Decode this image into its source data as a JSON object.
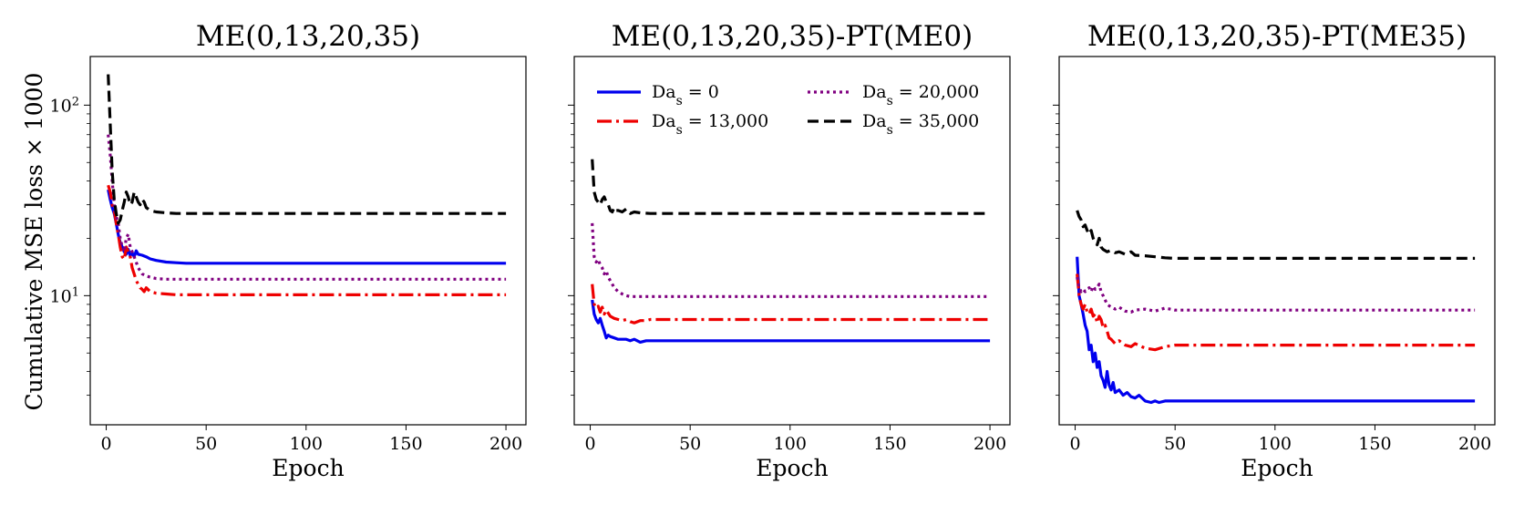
{
  "figure": {
    "ylabel": "Cumulative MSE loss × 1000",
    "colors": {
      "s0": "#0000ee",
      "s13": "#ee0000",
      "s20": "#800080",
      "s35": "#000000"
    }
  },
  "chart_data": [
    {
      "type": "line",
      "title": "ME(0,13,20,35)",
      "xlabel": "Epoch",
      "ylabel": "Cumulative MSE loss × 1000",
      "yscale": "log",
      "xlim": [
        -8,
        210
      ],
      "ylim": [
        2.1,
        180
      ],
      "xticks": [
        0,
        50,
        100,
        150,
        200
      ],
      "yticks": [
        10,
        100
      ],
      "ytick_labels": [
        "10^1",
        "10^2"
      ],
      "grid": false,
      "series": [
        {
          "key": "s0",
          "name": "Da_s = 0",
          "x": [
            1,
            2,
            3,
            4,
            5,
            6,
            7,
            8,
            9,
            10,
            11,
            12,
            13,
            14,
            15,
            16,
            18,
            20,
            22,
            25,
            30,
            35,
            40,
            50,
            70,
            100,
            150,
            200
          ],
          "y": [
            36,
            32,
            29,
            27,
            24,
            21,
            19,
            18,
            17,
            16.5,
            17.5,
            16.2,
            16.8,
            16,
            17.2,
            16.5,
            16.3,
            16,
            15.6,
            15.3,
            15,
            14.9,
            14.8,
            14.8,
            14.8,
            14.8,
            14.8,
            14.8
          ]
        },
        {
          "key": "s13",
          "name": "Da_s = 13,000",
          "x": [
            1,
            2,
            3,
            4,
            5,
            6,
            7,
            8,
            9,
            10,
            11,
            12,
            13,
            14,
            15,
            16,
            17,
            18,
            19,
            20,
            22,
            25,
            30,
            35,
            40,
            50,
            100,
            150,
            200
          ],
          "y": [
            38,
            35,
            30,
            28,
            24,
            21,
            18,
            16,
            15.5,
            18,
            17,
            16,
            14,
            13,
            12,
            11.5,
            11,
            10.8,
            10.5,
            11,
            10.5,
            10.3,
            10.2,
            10.1,
            10.1,
            10.1,
            10.1,
            10.1,
            10.1
          ]
        },
        {
          "key": "s20",
          "name": "Da_s = 20,000",
          "x": [
            1,
            2,
            3,
            4,
            5,
            6,
            7,
            8,
            9,
            10,
            11,
            12,
            13,
            14,
            15,
            16,
            17,
            18,
            20,
            22,
            25,
            30,
            35,
            40,
            50,
            100,
            150,
            200
          ],
          "y": [
            70,
            55,
            40,
            30,
            26,
            24,
            20,
            18,
            17,
            20,
            21,
            18,
            17,
            16,
            15,
            14,
            13.5,
            13,
            12.7,
            12.5,
            12.3,
            12.2,
            12.2,
            12.2,
            12.2,
            12.2,
            12.2,
            12.2
          ]
        },
        {
          "key": "s35",
          "name": "Da_s = 35,000",
          "x": [
            1,
            2,
            3,
            4,
            5,
            6,
            7,
            8,
            9,
            10,
            11,
            12,
            13,
            14,
            15,
            16,
            17,
            18,
            19,
            20,
            22,
            25,
            30,
            35,
            40,
            50,
            100,
            150,
            200
          ],
          "y": [
            145,
            80,
            45,
            32,
            27,
            24,
            25,
            28,
            31,
            35,
            33,
            30,
            31,
            35,
            33,
            31,
            30,
            32,
            31,
            29,
            28,
            27.5,
            27.2,
            27,
            27,
            27,
            27,
            27,
            27
          ]
        }
      ]
    },
    {
      "type": "line",
      "title": "ME(0,13,20,35)-PT(ME0)",
      "xlabel": "Epoch",
      "yscale": "log",
      "xlim": [
        -8,
        210
      ],
      "ylim": [
        2.1,
        180
      ],
      "xticks": [
        0,
        50,
        100,
        150,
        200
      ],
      "grid": false,
      "legend": {
        "placement": "top",
        "columns": 2
      },
      "series": [
        {
          "key": "s0",
          "name": "Da_s = 0",
          "x": [
            1,
            2,
            3,
            4,
            5,
            6,
            7,
            8,
            9,
            10,
            12,
            14,
            16,
            18,
            20,
            22,
            25,
            28,
            30,
            35,
            40,
            50,
            100,
            150,
            200
          ],
          "y": [
            9.5,
            8,
            7.5,
            7.2,
            7.6,
            7,
            6.5,
            6,
            6.2,
            6.1,
            6,
            5.9,
            5.9,
            5.9,
            5.8,
            5.9,
            5.7,
            5.8,
            5.8,
            5.8,
            5.8,
            5.8,
            5.8,
            5.8,
            5.8
          ]
        },
        {
          "key": "s13",
          "name": "Da_s = 13,000",
          "x": [
            1,
            2,
            3,
            4,
            5,
            6,
            7,
            8,
            10,
            12,
            14,
            16,
            18,
            20,
            22,
            25,
            28,
            30,
            35,
            40,
            50,
            100,
            150,
            200
          ],
          "y": [
            11.5,
            9,
            8.6,
            8.8,
            8.2,
            8.7,
            8,
            8.4,
            7.8,
            7.6,
            7.5,
            7.4,
            7.5,
            7.3,
            7.2,
            7.4,
            7.4,
            7.5,
            7.5,
            7.5,
            7.5,
            7.5,
            7.5,
            7.5
          ]
        },
        {
          "key": "s20",
          "name": "Da_s = 20,000",
          "x": [
            1,
            2,
            3,
            4,
            5,
            6,
            7,
            8,
            9,
            10,
            11,
            12,
            14,
            16,
            18,
            20,
            25,
            30,
            40,
            50,
            100,
            150,
            200
          ],
          "y": [
            24,
            16,
            15,
            15.5,
            14.5,
            14,
            13,
            13.5,
            12.5,
            12,
            11.5,
            11,
            10.5,
            10.2,
            10,
            9.9,
            9.9,
            9.9,
            9.9,
            9.9,
            9.9,
            9.9,
            9.9
          ]
        },
        {
          "key": "s35",
          "name": "Da_s = 35,000",
          "x": [
            1,
            2,
            3,
            4,
            5,
            6,
            7,
            8,
            9,
            10,
            11,
            12,
            13,
            14,
            16,
            18,
            20,
            22,
            25,
            30,
            40,
            50,
            100,
            150,
            200
          ],
          "y": [
            52,
            35,
            32,
            31,
            30,
            32,
            33,
            31,
            30,
            28,
            27.5,
            29,
            28,
            28,
            27.5,
            28.5,
            27,
            27.5,
            27.2,
            27,
            27,
            27,
            27,
            27,
            27
          ]
        }
      ]
    },
    {
      "type": "line",
      "title": "ME(0,13,20,35)-PT(ME35)",
      "xlabel": "Epoch",
      "yscale": "log",
      "xlim": [
        -8,
        210
      ],
      "ylim": [
        2.1,
        180
      ],
      "xticks": [
        0,
        50,
        100,
        150,
        200
      ],
      "grid": false,
      "series": [
        {
          "key": "s0",
          "name": "Da_s = 0",
          "x": [
            1,
            2,
            3,
            4,
            5,
            6,
            7,
            8,
            9,
            10,
            11,
            12,
            13,
            14,
            15,
            16,
            17,
            18,
            19,
            20,
            22,
            24,
            26,
            28,
            30,
            32,
            35,
            38,
            40,
            42,
            45,
            50,
            100,
            150,
            200
          ],
          "y": [
            16,
            10,
            9,
            8,
            7,
            6.5,
            5.2,
            5.5,
            4.5,
            5,
            4.2,
            4.5,
            3.8,
            3.6,
            3.3,
            4,
            3.4,
            3.2,
            3.5,
            3.1,
            3.2,
            3,
            3.1,
            2.95,
            2.9,
            3,
            2.8,
            2.75,
            2.8,
            2.75,
            2.8,
            2.8,
            2.8,
            2.8,
            2.8
          ]
        },
        {
          "key": "s13",
          "name": "Da_s = 13,000",
          "x": [
            1,
            2,
            3,
            4,
            5,
            6,
            7,
            8,
            9,
            10,
            11,
            12,
            13,
            14,
            15,
            16,
            17,
            18,
            20,
            22,
            25,
            28,
            30,
            35,
            40,
            45,
            50,
            100,
            150,
            200
          ],
          "y": [
            13,
            10,
            9,
            8.5,
            9,
            8.2,
            8,
            8.5,
            7.8,
            8,
            7.2,
            7.8,
            7.5,
            6.8,
            7,
            6.5,
            6,
            5.9,
            5.6,
            5.8,
            5.5,
            5.4,
            5.6,
            5.3,
            5.2,
            5.4,
            5.5,
            5.5,
            5.5,
            5.5
          ]
        },
        {
          "key": "s20",
          "name": "Da_s = 20,000",
          "x": [
            1,
            2,
            3,
            4,
            5,
            6,
            7,
            8,
            9,
            10,
            11,
            12,
            13,
            14,
            15,
            16,
            18,
            20,
            22,
            25,
            28,
            30,
            35,
            40,
            45,
            50,
            100,
            150,
            200
          ],
          "y": [
            12.5,
            11,
            10.5,
            10.8,
            10.5,
            10.8,
            11,
            10.5,
            11.2,
            10.8,
            11,
            11.5,
            10.5,
            10,
            9.5,
            9,
            8.7,
            8.5,
            8.7,
            8.3,
            8.2,
            8.4,
            8.5,
            8.3,
            8.6,
            8.4,
            8.4,
            8.4,
            8.4
          ]
        },
        {
          "key": "s35",
          "name": "Da_s = 35,000",
          "x": [
            1,
            2,
            3,
            4,
            5,
            6,
            7,
            8,
            9,
            10,
            11,
            12,
            13,
            14,
            16,
            18,
            20,
            22,
            25,
            28,
            30,
            35,
            40,
            45,
            50,
            100,
            150,
            200
          ],
          "y": [
            28,
            26,
            25,
            23,
            23.5,
            22,
            21,
            22,
            20,
            19,
            18.5,
            20,
            18,
            17.5,
            17,
            17.3,
            16.8,
            17,
            16.5,
            17,
            16.3,
            16.2,
            16,
            15.8,
            15.7,
            15.7,
            15.7,
            15.7
          ]
        }
      ]
    }
  ]
}
